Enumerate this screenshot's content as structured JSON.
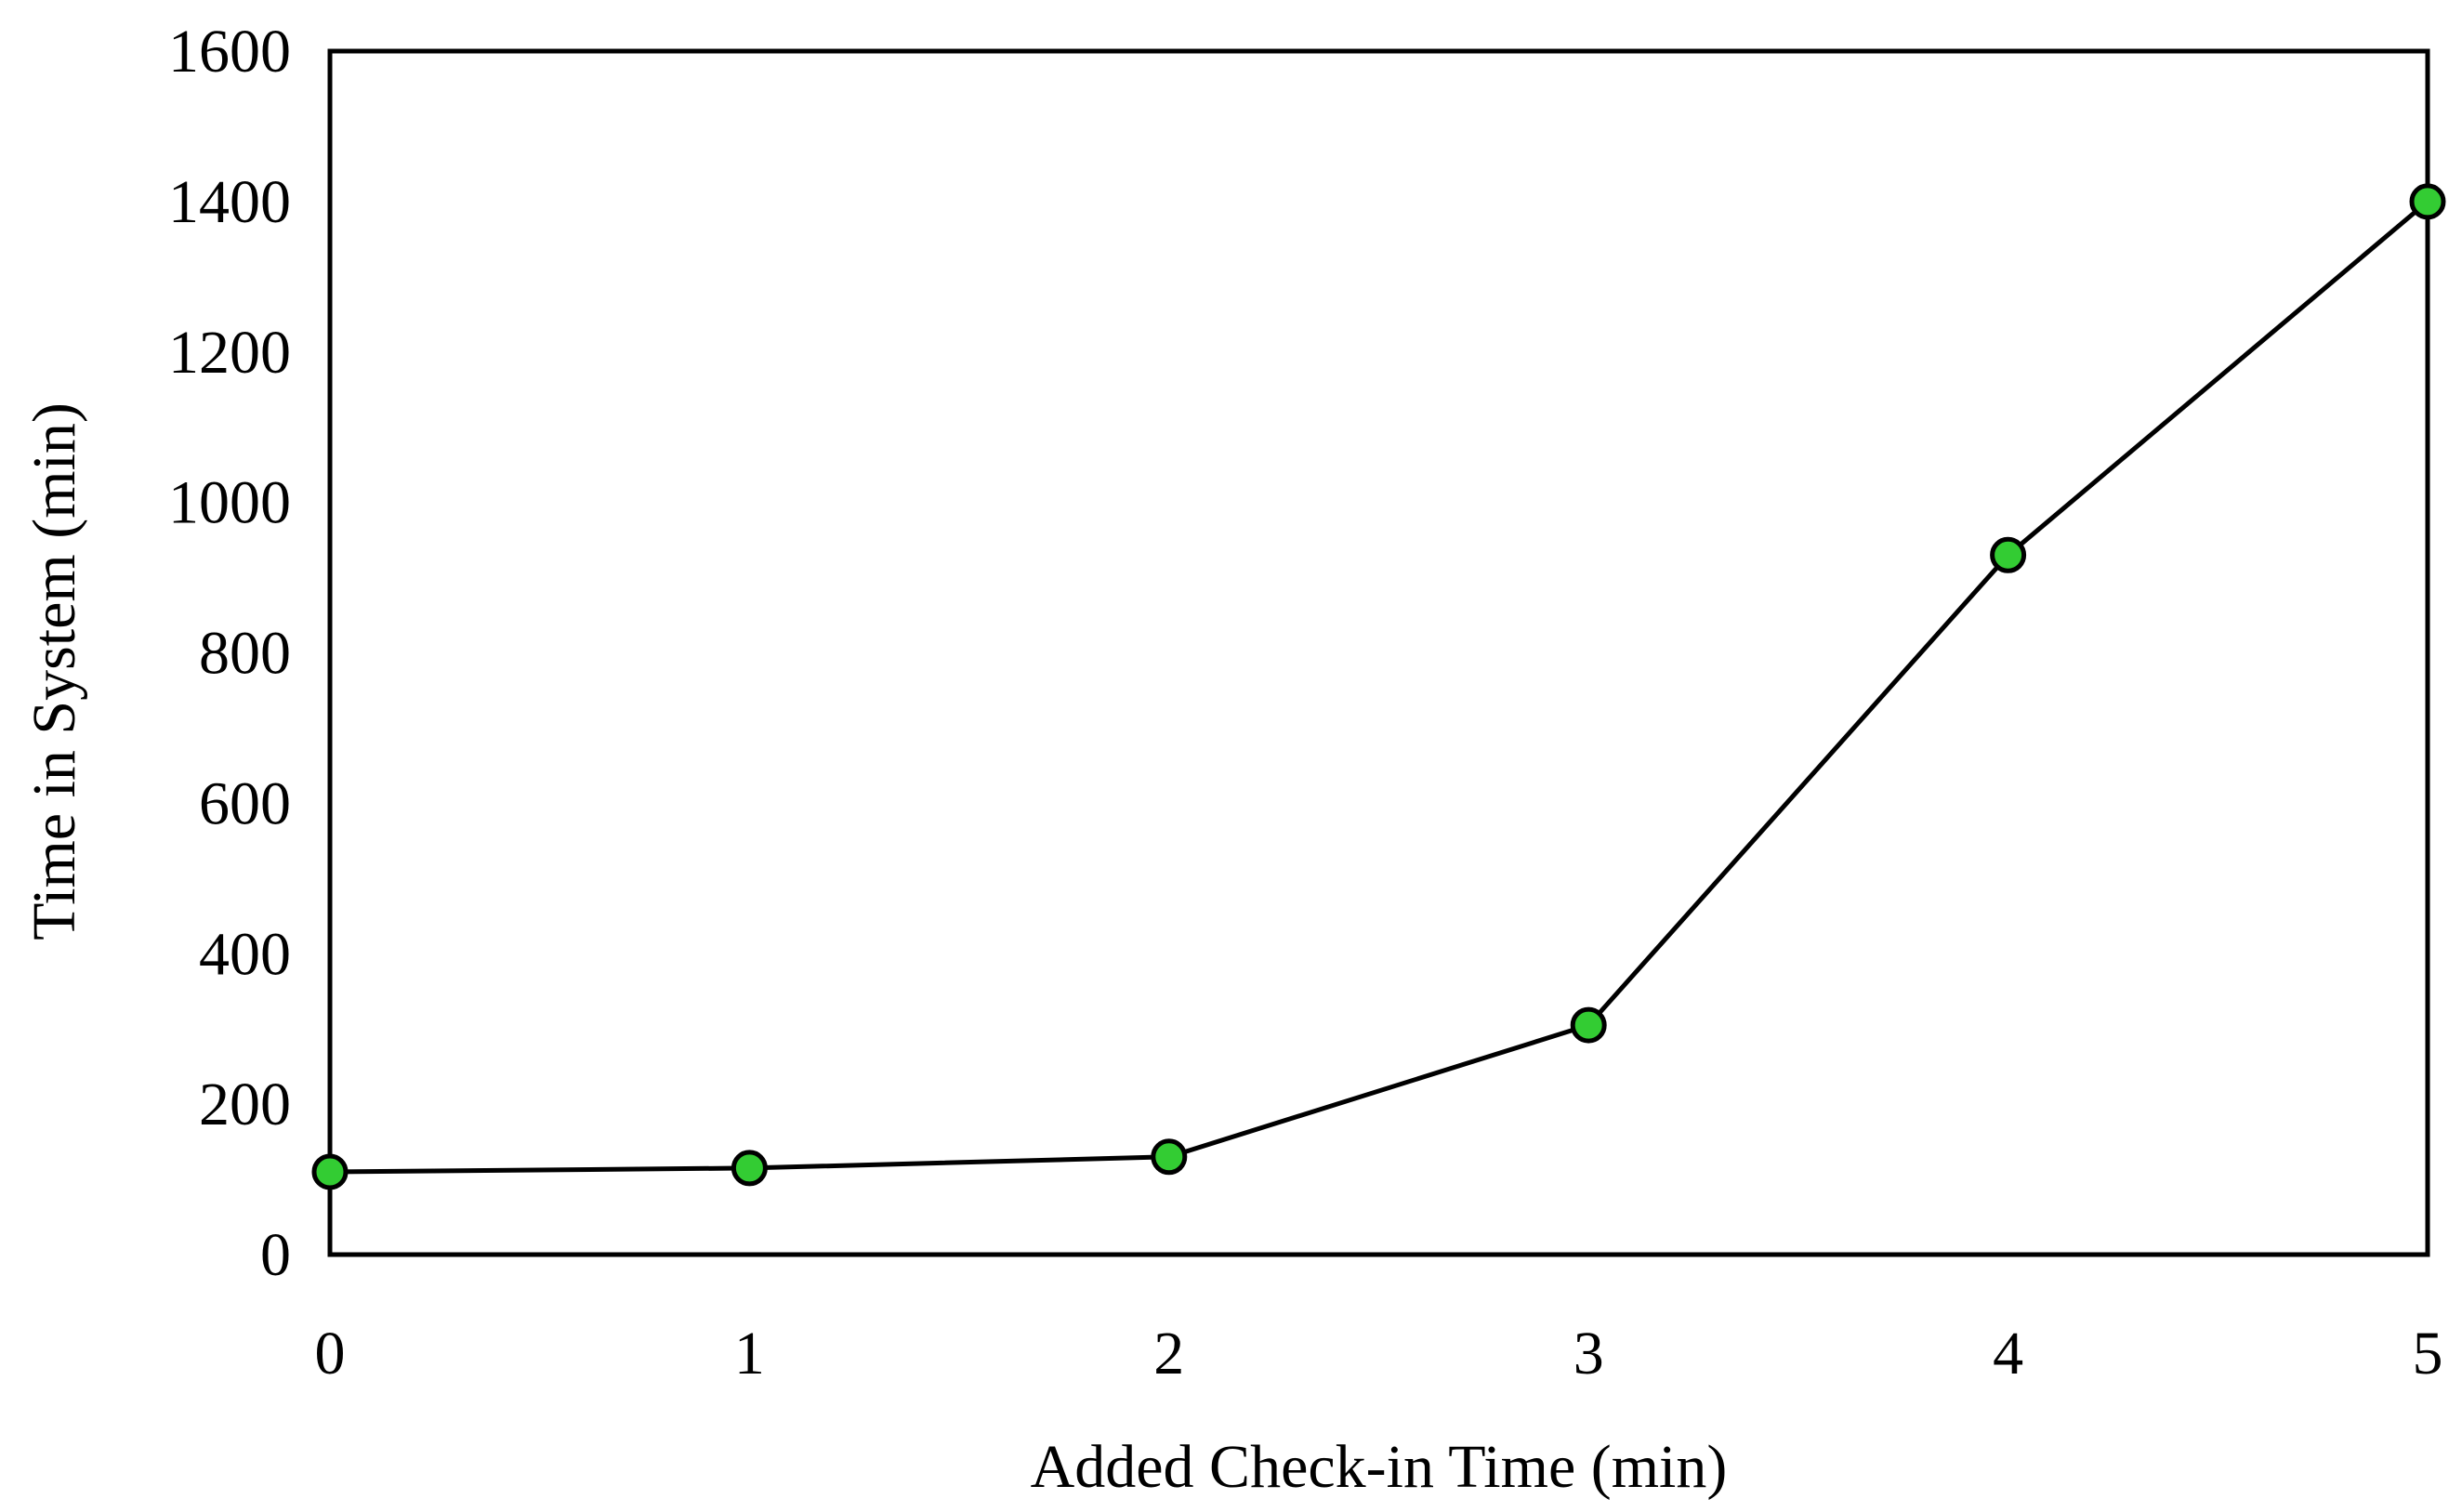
{
  "chart_data": {
    "type": "line",
    "title": "",
    "xlabel": "Added Check-in Time (min)",
    "ylabel": "Time in System (min)",
    "x": [
      0,
      1,
      2,
      3,
      4,
      5
    ],
    "series": [
      {
        "values": [
          110,
          115,
          130,
          305,
          930,
          1400
        ]
      }
    ],
    "xlim": [
      0,
      5
    ],
    "ylim": [
      0,
      1600
    ],
    "xticks": [
      0,
      1,
      2,
      3,
      4,
      5
    ],
    "yticks": [
      0,
      200,
      400,
      600,
      800,
      1000,
      1200,
      1400,
      1600
    ],
    "grid": false,
    "legend": "none",
    "colors": {
      "marker_fill": "#33cc33",
      "marker_stroke": "#000000",
      "line": "#000000",
      "frame": "#000000"
    }
  }
}
